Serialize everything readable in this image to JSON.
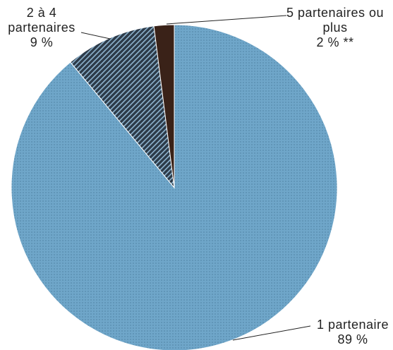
{
  "chart_data": {
    "type": "pie",
    "categories": [
      "1 partenaire",
      "2 à 4 partenaires",
      "5 partenaires ou plus"
    ],
    "values": [
      89,
      9,
      2
    ],
    "value_labels": [
      "89 %",
      "9 %",
      "2 % **"
    ],
    "colors": [
      "#6fa6c9",
      "#2c3a48",
      "#3a2218"
    ]
  }
}
